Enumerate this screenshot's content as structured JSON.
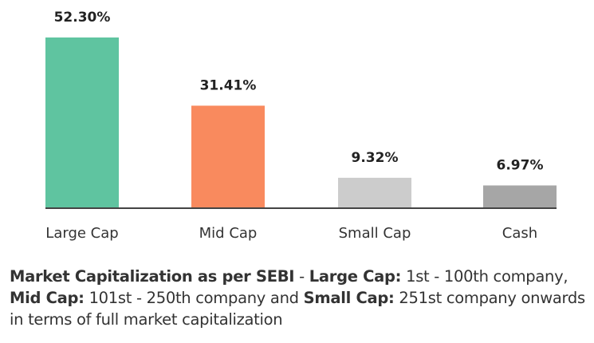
{
  "chart_data": {
    "type": "bar",
    "title": "",
    "xlabel": "",
    "ylabel": "",
    "categories": [
      "Large Cap",
      "Mid Cap",
      "Small Cap",
      "Cash"
    ],
    "values": [
      52.3,
      31.41,
      9.32,
      6.97
    ],
    "value_labels": [
      "52.30%",
      "31.41%",
      "9.32%",
      "6.97%"
    ],
    "colors": [
      "#5fc4a0",
      "#f98a5e",
      "#cccccc",
      "#a6a6a6"
    ],
    "ylim": [
      0,
      52.3
    ],
    "grid": false,
    "legend": "none"
  },
  "note": {
    "parts": [
      {
        "text": "Market Capitalization as per SEBI",
        "bold": true
      },
      {
        "text": " - ",
        "bold": false
      },
      {
        "text": "Large Cap:",
        "bold": true
      },
      {
        "text": " 1st - 100th company, ",
        "bold": false
      },
      {
        "text": "Mid Cap:",
        "bold": true
      },
      {
        "text": " 101st - 250th company and ",
        "bold": false
      },
      {
        "text": "Small Cap:",
        "bold": true
      },
      {
        "text": " 251st company onwards in terms of full market capitalization",
        "bold": false
      }
    ]
  }
}
